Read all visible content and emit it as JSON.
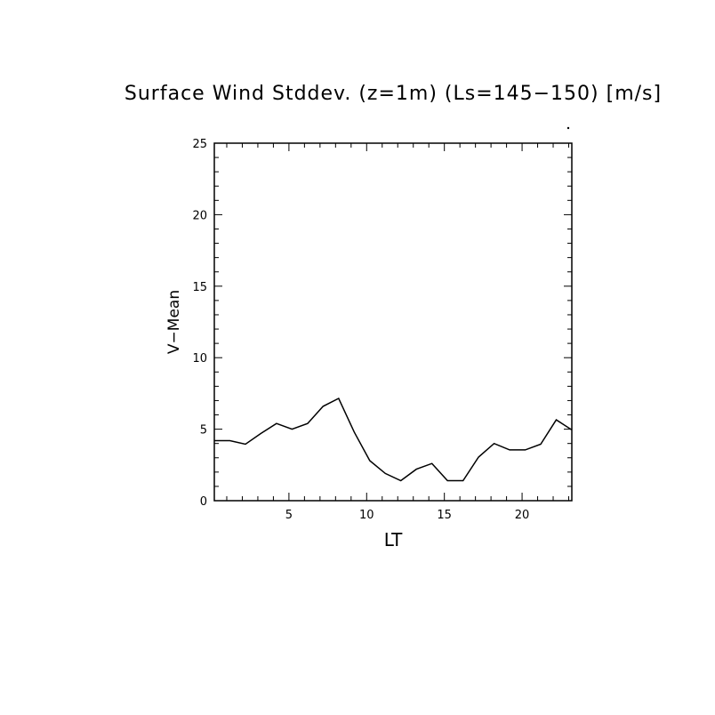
{
  "chart_data": {
    "type": "line",
    "title": "Surface Wind Stddev. (z=1m) (Ls=145−150) [m/s]",
    "xlabel": "LT",
    "ylabel": "V−Mean",
    "xlim": [
      0.2,
      23.2
    ],
    "ylim": [
      0,
      25
    ],
    "xticks": [
      5,
      10,
      15,
      20
    ],
    "yticks": [
      0,
      5,
      10,
      15,
      20,
      25
    ],
    "grid": false,
    "series": [
      {
        "x": [
          0.2,
          1.2,
          2.2,
          3.2,
          4.2,
          5.2,
          6.2,
          7.2,
          8.2,
          9.2,
          10.2,
          11.2,
          12.2,
          13.2,
          14.2,
          15.2,
          16.2,
          17.2,
          18.2,
          19.2,
          20.2,
          21.2,
          22.2,
          23.2
        ],
        "values": [
          4.2,
          4.2,
          3.95,
          4.7,
          5.4,
          5.0,
          5.4,
          6.6,
          7.15,
          4.8,
          2.8,
          1.9,
          1.4,
          2.2,
          2.6,
          1.4,
          1.4,
          3.05,
          4.0,
          3.55,
          3.55,
          3.95,
          5.65,
          4.95
        ]
      }
    ]
  }
}
